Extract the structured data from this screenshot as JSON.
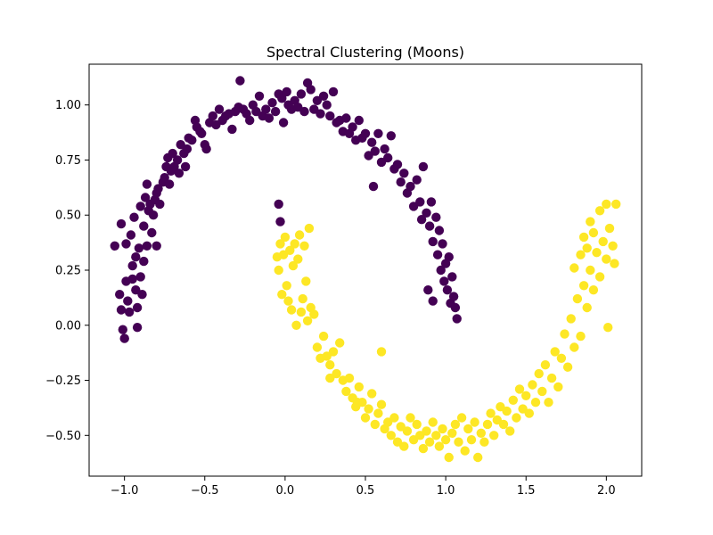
{
  "chart_data": {
    "type": "scatter",
    "title": "Spectral Clustering (Moons)",
    "xlabel": "",
    "ylabel": "",
    "xlim": [
      -1.22,
      2.22
    ],
    "ylim": [
      -0.685,
      1.185
    ],
    "x_ticks": [
      -1.0,
      -0.5,
      0.0,
      0.5,
      1.0,
      1.5,
      2.0
    ],
    "x_tick_labels": [
      "−1.0",
      "−0.5",
      "0.0",
      "0.5",
      "1.0",
      "1.5",
      "2.0"
    ],
    "y_ticks": [
      -0.5,
      -0.25,
      0.0,
      0.25,
      0.5,
      0.75,
      1.0
    ],
    "y_tick_labels": [
      "−0.50",
      "−0.25",
      "0.00",
      "0.25",
      "0.50",
      "0.75",
      "1.00"
    ],
    "grid": false,
    "colors": [
      "#440154",
      "#fde725"
    ],
    "series": [
      {
        "points": [
          [
            -1.06,
            0.36
          ],
          [
            -1.03,
            0.14
          ],
          [
            -1.02,
            0.07
          ],
          [
            -1.02,
            0.46
          ],
          [
            -1.01,
            -0.02
          ],
          [
            -1.0,
            -0.06
          ],
          [
            -0.99,
            0.2
          ],
          [
            -0.99,
            0.37
          ],
          [
            -0.98,
            0.11
          ],
          [
            -0.97,
            0.06
          ],
          [
            -0.96,
            0.41
          ],
          [
            -0.95,
            0.21
          ],
          [
            -0.95,
            0.27
          ],
          [
            -0.94,
            0.49
          ],
          [
            -0.93,
            0.16
          ],
          [
            -0.93,
            0.31
          ],
          [
            -0.92,
            0.08
          ],
          [
            -0.92,
            -0.01
          ],
          [
            -0.91,
            0.35
          ],
          [
            -0.9,
            0.54
          ],
          [
            -0.9,
            0.22
          ],
          [
            -0.89,
            0.14
          ],
          [
            -0.88,
            0.45
          ],
          [
            -0.88,
            0.29
          ],
          [
            -0.87,
            0.58
          ],
          [
            -0.86,
            0.36
          ],
          [
            -0.86,
            0.64
          ],
          [
            -0.85,
            0.52
          ],
          [
            -0.84,
            0.55
          ],
          [
            -0.83,
            0.42
          ],
          [
            -0.82,
            0.5
          ],
          [
            -0.81,
            0.57
          ],
          [
            -0.8,
            0.36
          ],
          [
            -0.8,
            0.6
          ],
          [
            -0.79,
            0.62
          ],
          [
            -0.78,
            0.55
          ],
          [
            -0.76,
            0.65
          ],
          [
            -0.75,
            0.67
          ],
          [
            -0.74,
            0.72
          ],
          [
            -0.73,
            0.76
          ],
          [
            -0.72,
            0.64
          ],
          [
            -0.71,
            0.7
          ],
          [
            -0.7,
            0.78
          ],
          [
            -0.69,
            0.72
          ],
          [
            -0.67,
            0.75
          ],
          [
            -0.66,
            0.69
          ],
          [
            -0.65,
            0.82
          ],
          [
            -0.63,
            0.78
          ],
          [
            -0.62,
            0.72
          ],
          [
            -0.61,
            0.8
          ],
          [
            -0.6,
            0.85
          ],
          [
            -0.58,
            0.84
          ],
          [
            -0.56,
            0.93
          ],
          [
            -0.55,
            0.9
          ],
          [
            -0.53,
            0.88
          ],
          [
            -0.52,
            0.87
          ],
          [
            -0.5,
            0.82
          ],
          [
            -0.49,
            0.8
          ],
          [
            -0.47,
            0.92
          ],
          [
            -0.45,
            0.95
          ],
          [
            -0.43,
            0.91
          ],
          [
            -0.41,
            0.98
          ],
          [
            -0.39,
            0.93
          ],
          [
            -0.37,
            0.95
          ],
          [
            -0.35,
            0.96
          ],
          [
            -0.33,
            0.89
          ],
          [
            -0.31,
            0.97
          ],
          [
            -0.29,
            0.99
          ],
          [
            -0.28,
            1.11
          ],
          [
            -0.26,
            0.98
          ],
          [
            -0.24,
            0.96
          ],
          [
            -0.22,
            0.93
          ],
          [
            -0.2,
            1.0
          ],
          [
            -0.18,
            0.97
          ],
          [
            -0.16,
            1.04
          ],
          [
            -0.14,
            0.95
          ],
          [
            -0.12,
            0.98
          ],
          [
            -0.1,
            0.94
          ],
          [
            -0.08,
            1.01
          ],
          [
            -0.06,
            0.97
          ],
          [
            -0.04,
            1.05
          ],
          [
            -0.02,
            1.03
          ],
          [
            -0.01,
            0.92
          ],
          [
            0.01,
            1.06
          ],
          [
            0.02,
            1.0
          ],
          [
            0.04,
            0.98
          ],
          [
            0.06,
            1.02
          ],
          [
            0.08,
            0.99
          ],
          [
            0.1,
            1.05
          ],
          [
            0.12,
            0.97
          ],
          [
            0.14,
            1.1
          ],
          [
            0.16,
            1.07
          ],
          [
            0.18,
            0.98
          ],
          [
            0.2,
            1.02
          ],
          [
            0.22,
            0.96
          ],
          [
            0.24,
            1.04
          ],
          [
            0.26,
            1.0
          ],
          [
            0.28,
            0.95
          ],
          [
            0.3,
            1.06
          ],
          [
            0.32,
            0.92
          ],
          [
            0.34,
            0.93
          ],
          [
            0.36,
            0.88
          ],
          [
            0.38,
            0.94
          ],
          [
            0.4,
            0.87
          ],
          [
            0.42,
            0.9
          ],
          [
            0.44,
            0.84
          ],
          [
            0.46,
            0.93
          ],
          [
            0.48,
            0.85
          ],
          [
            0.5,
            0.87
          ],
          [
            0.52,
            0.77
          ],
          [
            0.54,
            0.83
          ],
          [
            0.56,
            0.79
          ],
          [
            0.58,
            0.87
          ],
          [
            0.6,
            0.74
          ],
          [
            0.62,
            0.8
          ],
          [
            0.64,
            0.76
          ],
          [
            0.66,
            0.86
          ],
          [
            0.68,
            0.71
          ],
          [
            0.7,
            0.73
          ],
          [
            0.72,
            0.65
          ],
          [
            0.74,
            0.69
          ],
          [
            0.76,
            0.6
          ],
          [
            0.78,
            0.63
          ],
          [
            0.8,
            0.54
          ],
          [
            0.82,
            0.66
          ],
          [
            0.84,
            0.56
          ],
          [
            0.85,
            0.48
          ],
          [
            0.86,
            0.72
          ],
          [
            0.88,
            0.51
          ],
          [
            0.9,
            0.45
          ],
          [
            0.91,
            0.56
          ],
          [
            0.92,
            0.38
          ],
          [
            0.94,
            0.49
          ],
          [
            0.95,
            0.32
          ],
          [
            0.96,
            0.43
          ],
          [
            0.97,
            0.25
          ],
          [
            0.98,
            0.37
          ],
          [
            0.99,
            0.2
          ],
          [
            1.0,
            0.28
          ],
          [
            1.01,
            0.16
          ],
          [
            1.02,
            0.31
          ],
          [
            1.03,
            0.1
          ],
          [
            1.04,
            0.22
          ],
          [
            1.05,
            0.13
          ],
          [
            1.06,
            0.08
          ],
          [
            1.07,
            0.03
          ],
          [
            0.89,
            0.16
          ],
          [
            0.92,
            0.11
          ],
          [
            0.55,
            0.63
          ],
          [
            -0.04,
            0.55
          ],
          [
            -0.03,
            0.47
          ]
        ]
      },
      {
        "points": [
          [
            -0.05,
            0.31
          ],
          [
            -0.04,
            0.25
          ],
          [
            -0.03,
            0.37
          ],
          [
            -0.02,
            0.14
          ],
          [
            -0.01,
            0.32
          ],
          [
            0.0,
            0.4
          ],
          [
            0.01,
            0.18
          ],
          [
            0.02,
            0.11
          ],
          [
            0.03,
            0.34
          ],
          [
            0.04,
            0.07
          ],
          [
            0.05,
            0.27
          ],
          [
            0.06,
            0.37
          ],
          [
            0.07,
            0.0
          ],
          [
            0.08,
            0.3
          ],
          [
            0.09,
            0.41
          ],
          [
            0.1,
            0.06
          ],
          [
            0.11,
            0.12
          ],
          [
            0.12,
            0.36
          ],
          [
            0.13,
            0.2
          ],
          [
            0.14,
            0.02
          ],
          [
            0.15,
            0.44
          ],
          [
            0.16,
            0.08
          ],
          [
            0.18,
            0.05
          ],
          [
            0.2,
            -0.1
          ],
          [
            0.22,
            -0.15
          ],
          [
            0.24,
            -0.05
          ],
          [
            0.26,
            -0.14
          ],
          [
            0.28,
            -0.18
          ],
          [
            0.3,
            -0.12
          ],
          [
            0.32,
            -0.22
          ],
          [
            0.34,
            -0.08
          ],
          [
            0.36,
            -0.25
          ],
          [
            0.38,
            -0.3
          ],
          [
            0.4,
            -0.24
          ],
          [
            0.42,
            -0.33
          ],
          [
            0.44,
            -0.37
          ],
          [
            0.46,
            -0.28
          ],
          [
            0.48,
            -0.35
          ],
          [
            0.5,
            -0.42
          ],
          [
            0.52,
            -0.38
          ],
          [
            0.54,
            -0.31
          ],
          [
            0.56,
            -0.45
          ],
          [
            0.58,
            -0.4
          ],
          [
            0.6,
            -0.36
          ],
          [
            0.62,
            -0.47
          ],
          [
            0.64,
            -0.44
          ],
          [
            0.66,
            -0.5
          ],
          [
            0.68,
            -0.42
          ],
          [
            0.7,
            -0.53
          ],
          [
            0.72,
            -0.46
          ],
          [
            0.74,
            -0.55
          ],
          [
            0.76,
            -0.48
          ],
          [
            0.78,
            -0.42
          ],
          [
            0.8,
            -0.52
          ],
          [
            0.82,
            -0.45
          ],
          [
            0.84,
            -0.5
          ],
          [
            0.86,
            -0.56
          ],
          [
            0.88,
            -0.48
          ],
          [
            0.9,
            -0.53
          ],
          [
            0.92,
            -0.44
          ],
          [
            0.94,
            -0.5
          ],
          [
            0.96,
            -0.55
          ],
          [
            0.98,
            -0.47
          ],
          [
            1.0,
            -0.52
          ],
          [
            1.02,
            -0.6
          ],
          [
            1.04,
            -0.49
          ],
          [
            1.06,
            -0.45
          ],
          [
            1.08,
            -0.53
          ],
          [
            1.1,
            -0.42
          ],
          [
            1.12,
            -0.57
          ],
          [
            1.14,
            -0.47
          ],
          [
            1.16,
            -0.52
          ],
          [
            1.18,
            -0.44
          ],
          [
            1.2,
            -0.6
          ],
          [
            1.22,
            -0.49
          ],
          [
            1.24,
            -0.53
          ],
          [
            1.26,
            -0.45
          ],
          [
            1.28,
            -0.4
          ],
          [
            1.3,
            -0.5
          ],
          [
            1.32,
            -0.43
          ],
          [
            1.34,
            -0.37
          ],
          [
            1.36,
            -0.45
          ],
          [
            1.38,
            -0.39
          ],
          [
            1.4,
            -0.48
          ],
          [
            1.42,
            -0.34
          ],
          [
            1.44,
            -0.42
          ],
          [
            1.46,
            -0.29
          ],
          [
            1.48,
            -0.38
          ],
          [
            1.5,
            -0.32
          ],
          [
            1.52,
            -0.4
          ],
          [
            1.54,
            -0.27
          ],
          [
            1.56,
            -0.35
          ],
          [
            1.58,
            -0.22
          ],
          [
            1.6,
            -0.3
          ],
          [
            1.62,
            -0.18
          ],
          [
            1.64,
            -0.35
          ],
          [
            1.66,
            -0.24
          ],
          [
            1.68,
            -0.12
          ],
          [
            1.7,
            -0.28
          ],
          [
            1.72,
            -0.15
          ],
          [
            1.74,
            -0.04
          ],
          [
            1.76,
            -0.19
          ],
          [
            1.78,
            0.03
          ],
          [
            1.8,
            -0.1
          ],
          [
            1.82,
            0.12
          ],
          [
            1.84,
            -0.05
          ],
          [
            1.86,
            0.18
          ],
          [
            1.88,
            0.08
          ],
          [
            1.9,
            0.25
          ],
          [
            1.92,
            0.16
          ],
          [
            1.94,
            0.33
          ],
          [
            1.96,
            0.22
          ],
          [
            1.98,
            0.38
          ],
          [
            2.0,
            0.3
          ],
          [
            2.02,
            0.44
          ],
          [
            2.04,
            0.36
          ],
          [
            2.05,
            0.28
          ],
          [
            1.86,
            0.4
          ],
          [
            1.9,
            0.47
          ],
          [
            1.96,
            0.52
          ],
          [
            2.0,
            0.55
          ],
          [
            2.06,
            0.55
          ],
          [
            1.88,
            0.35
          ],
          [
            1.92,
            0.42
          ],
          [
            1.8,
            0.26
          ],
          [
            1.84,
            0.32
          ],
          [
            2.01,
            -0.01
          ],
          [
            0.6,
            -0.12
          ],
          [
            0.45,
            -0.35
          ],
          [
            0.28,
            -0.24
          ]
        ]
      }
    ]
  }
}
